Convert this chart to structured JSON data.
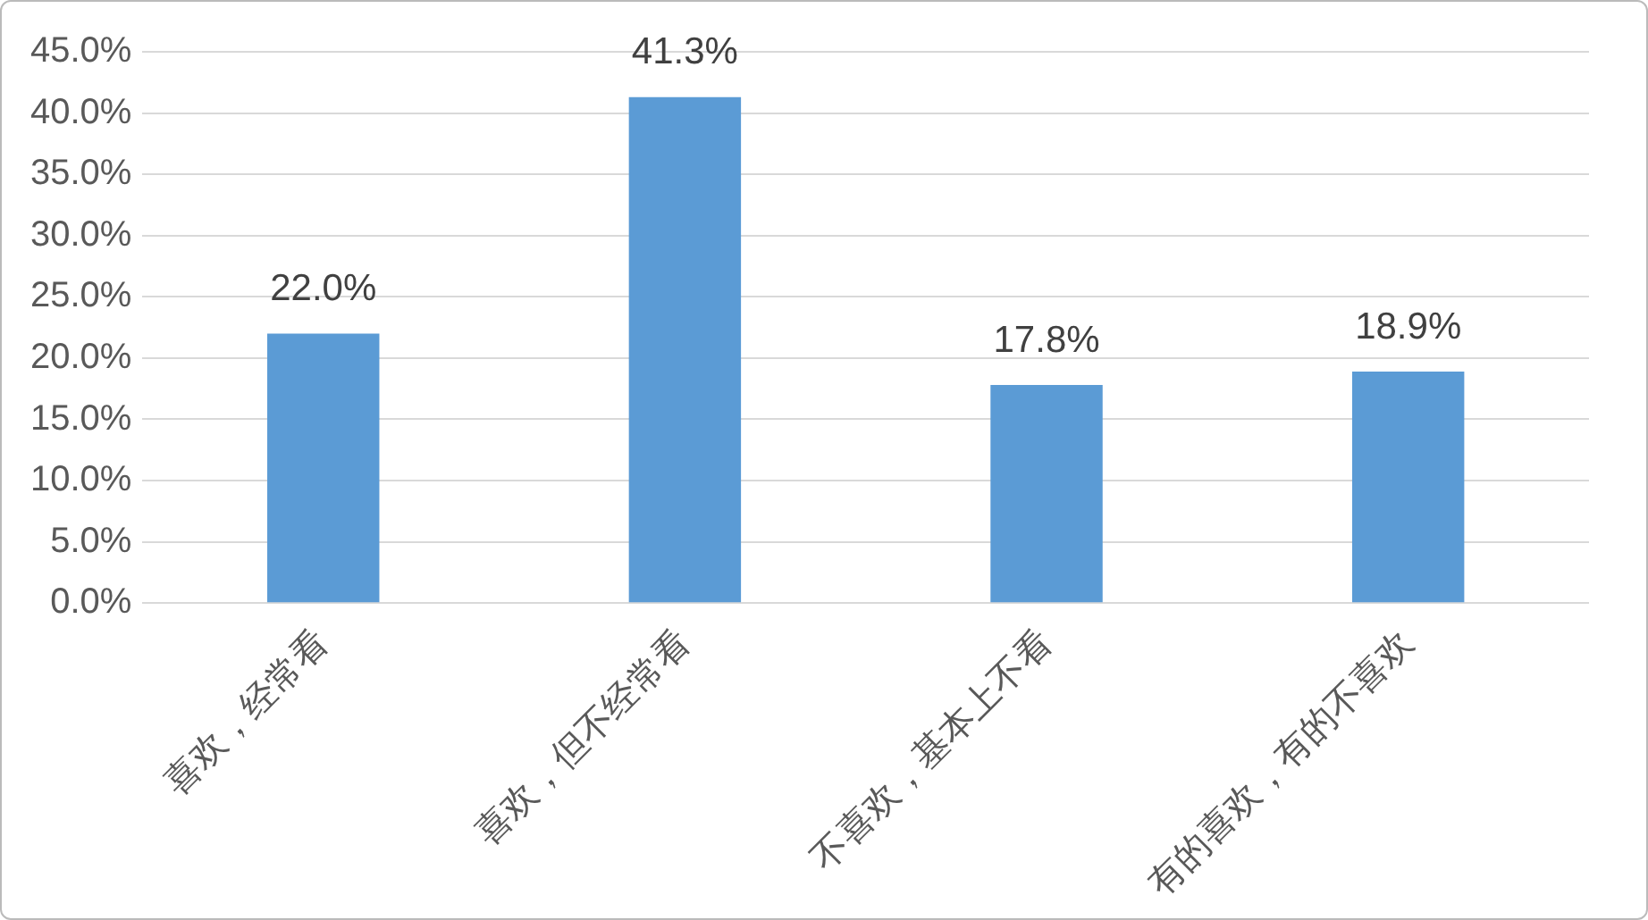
{
  "chart_data": {
    "type": "bar",
    "categories": [
      "喜欢，经常看",
      "喜欢，但不经常看",
      "不喜欢，基本上不看",
      "有的喜欢，有的不喜欢"
    ],
    "values": [
      22.0,
      41.3,
      17.8,
      18.9
    ],
    "value_labels": [
      "22.0%",
      "41.3%",
      "17.8%",
      "18.9%"
    ],
    "color": "#5b9bd5",
    "ylim": [
      0,
      45
    ],
    "yticks": [
      {
        "value": 0,
        "label": "0.0%"
      },
      {
        "value": 5,
        "label": "5.0%"
      },
      {
        "value": 10,
        "label": "10.0%"
      },
      {
        "value": 15,
        "label": "15.0%"
      },
      {
        "value": 20,
        "label": "20.0%"
      },
      {
        "value": 25,
        "label": "25.0%"
      },
      {
        "value": 30,
        "label": "30.0%"
      },
      {
        "value": 35,
        "label": "35.0%"
      },
      {
        "value": 40,
        "label": "40.0%"
      },
      {
        "value": 45,
        "label": "45.0%"
      }
    ],
    "grid": "y",
    "legend": false
  }
}
